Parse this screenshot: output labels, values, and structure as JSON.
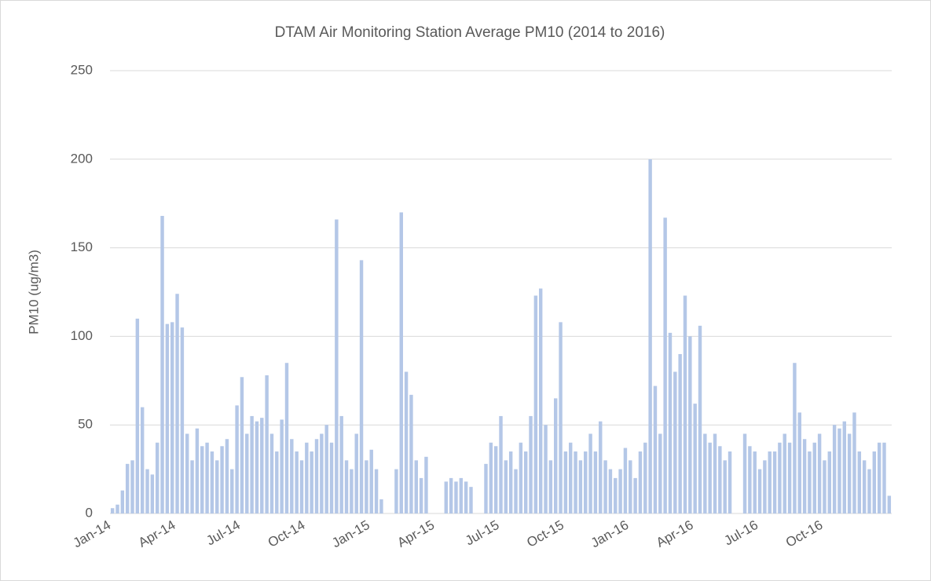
{
  "chart_data": {
    "type": "bar",
    "title": "DTAM Air Monitoring Station Average PM10 (2014 to 2016)",
    "y_label": "PM10 (ug/m3)",
    "color": "#b4c7e7",
    "grid": true,
    "ylim": [
      0,
      250
    ],
    "yticks": [
      0,
      50,
      100,
      150,
      200,
      250
    ],
    "categories": [
      "Jan-14",
      null,
      null,
      null,
      null,
      null,
      null,
      null,
      null,
      null,
      null,
      null,
      null,
      "Apr-14",
      null,
      null,
      null,
      null,
      null,
      null,
      null,
      null,
      null,
      null,
      null,
      null,
      "Jul-14",
      null,
      null,
      null,
      null,
      null,
      null,
      null,
      null,
      null,
      null,
      null,
      null,
      "Oct-14",
      null,
      null,
      null,
      null,
      null,
      null,
      null,
      null,
      null,
      null,
      null,
      null,
      "Jan-15",
      null,
      null,
      null,
      null,
      null,
      null,
      null,
      null,
      null,
      null,
      null,
      null,
      "Apr-15",
      null,
      null,
      null,
      null,
      null,
      null,
      null,
      null,
      null,
      null,
      null,
      null,
      "Jul-15",
      null,
      null,
      null,
      null,
      null,
      null,
      null,
      null,
      null,
      null,
      null,
      null,
      "Oct-15",
      null,
      null,
      null,
      null,
      null,
      null,
      null,
      null,
      null,
      null,
      null,
      null,
      "Jan-16",
      null,
      null,
      null,
      null,
      null,
      null,
      null,
      null,
      null,
      null,
      null,
      null,
      "Apr-16",
      null,
      null,
      null,
      null,
      null,
      null,
      null,
      null,
      null,
      null,
      null,
      null,
      "Jul-16",
      null,
      null,
      null,
      null,
      null,
      null,
      null,
      null,
      null,
      null,
      null,
      null,
      "Oct-16",
      null,
      null,
      null,
      null,
      null,
      null,
      null,
      null,
      null,
      null,
      null,
      null,
      null
    ],
    "values": [
      3,
      5,
      13,
      28,
      30,
      110,
      60,
      25,
      22,
      40,
      168,
      107,
      108,
      124,
      105,
      45,
      30,
      48,
      38,
      40,
      35,
      30,
      38,
      42,
      25,
      61,
      77,
      45,
      55,
      52,
      54,
      78,
      45,
      35,
      53,
      85,
      42,
      35,
      30,
      40,
      35,
      42,
      45,
      50,
      40,
      166,
      55,
      30,
      25,
      45,
      143,
      30,
      36,
      25,
      8,
      0,
      0,
      25,
      170,
      80,
      67,
      30,
      20,
      32,
      0,
      0,
      0,
      18,
      20,
      18,
      20,
      18,
      15,
      0,
      0,
      28,
      40,
      38,
      55,
      30,
      35,
      25,
      40,
      35,
      55,
      123,
      127,
      50,
      30,
      65,
      108,
      35,
      40,
      35,
      30,
      35,
      45,
      35,
      52,
      30,
      25,
      20,
      25,
      37,
      30,
      20,
      35,
      40,
      200,
      72,
      45,
      167,
      102,
      80,
      90,
      123,
      100,
      62,
      106,
      45,
      40,
      45,
      38,
      30,
      35,
      0,
      0,
      45,
      38,
      35,
      25,
      30,
      35,
      35,
      40,
      45,
      40,
      85,
      57,
      42,
      35,
      40,
      45,
      30,
      35,
      50,
      48,
      52,
      45,
      57,
      35,
      30,
      25,
      35,
      40,
      40,
      10
    ]
  }
}
